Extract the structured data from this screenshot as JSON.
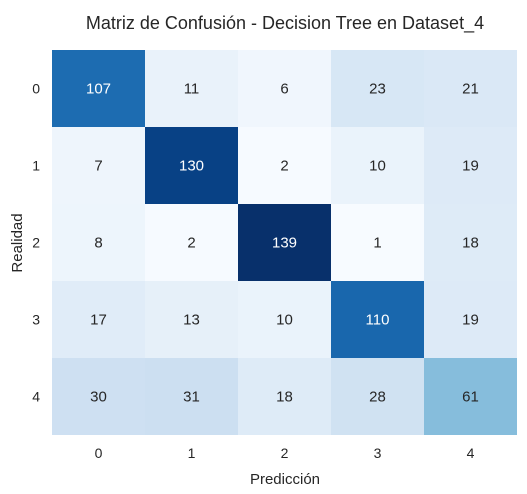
{
  "chart_data": {
    "type": "heatmap",
    "title": "Matriz de Confusión - Decision Tree en Dataset_4",
    "xlabel": "Predicción",
    "ylabel": "Realidad",
    "x_categories": [
      "0",
      "1",
      "2",
      "3",
      "4"
    ],
    "y_categories": [
      "0",
      "1",
      "2",
      "3",
      "4"
    ],
    "values": [
      [
        107,
        11,
        6,
        23,
        21
      ],
      [
        7,
        130,
        2,
        10,
        19
      ],
      [
        8,
        2,
        139,
        1,
        18
      ],
      [
        17,
        13,
        10,
        110,
        19
      ],
      [
        30,
        31,
        18,
        28,
        61
      ]
    ],
    "colormap": "Blues",
    "colorbar": false,
    "grid": false,
    "light_text_color": "#ffffff",
    "dark_text_color": "#262626"
  }
}
